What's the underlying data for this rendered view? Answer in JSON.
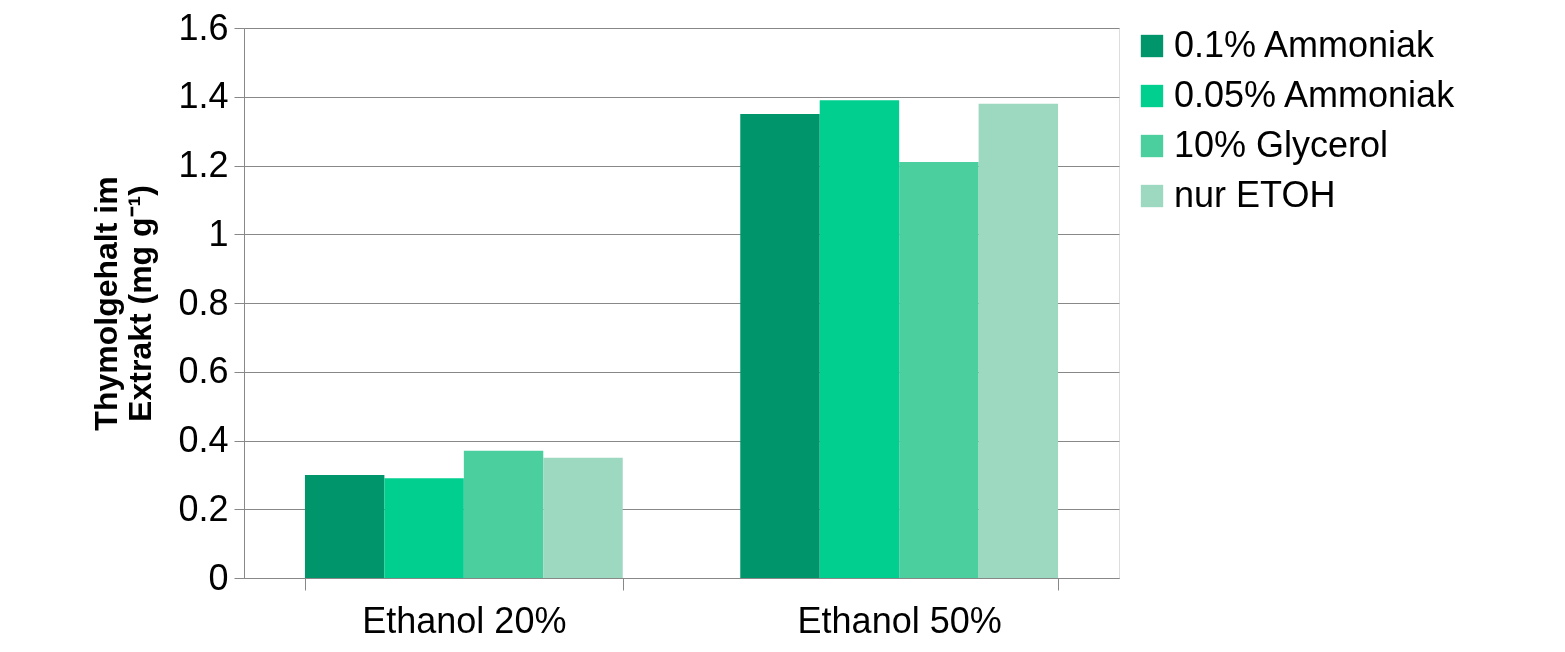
{
  "chart_data": {
    "type": "bar",
    "ylabel": "Thymolgehalt im Extrakt (mg g⁻¹)",
    "categories": [
      "Ethanol 20%",
      "Ethanol 50%"
    ],
    "series": [
      {
        "name": "0.1% Ammoniak",
        "color": "#00956a",
        "values": [
          0.3,
          1.35
        ]
      },
      {
        "name": "0.05% Ammoniak",
        "color": "#00cf8f",
        "values": [
          0.29,
          1.39
        ]
      },
      {
        "name": "10% Glycerol",
        "color": "#4bcf9f",
        "values": [
          0.37,
          1.21
        ]
      },
      {
        "name": "nur ETOH",
        "color": "#9cd9c0",
        "values": [
          0.35,
          1.38
        ]
      }
    ],
    "ylim": [
      0,
      1.6
    ],
    "yticks": [
      0,
      0.2,
      0.4,
      0.6,
      0.8,
      1,
      1.2,
      1.4,
      1.6
    ],
    "grid": "y",
    "legend": "right"
  }
}
